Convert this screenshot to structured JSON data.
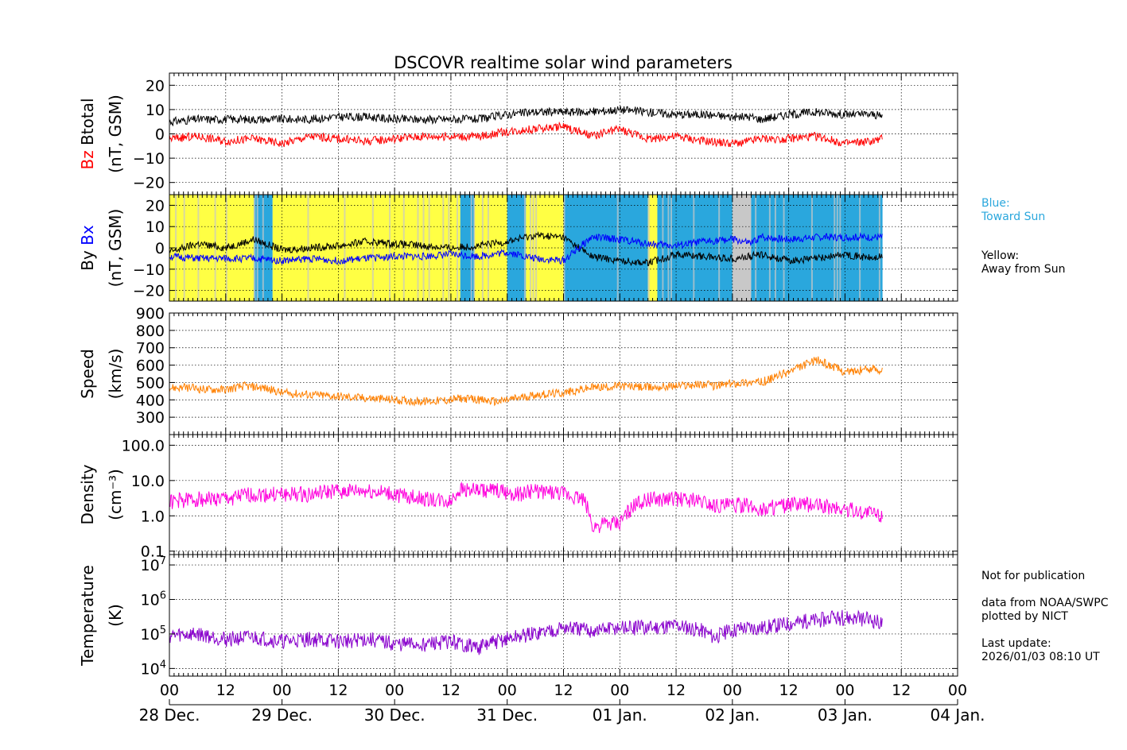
{
  "title": "DSCOVR realtime solar wind parameters",
  "colors": {
    "btotal": "#000000",
    "bz": "#ff0000",
    "by": "#000000",
    "bx": "#0000ff",
    "speed": "#ff8000",
    "density": "#ff00dd",
    "temperature": "#8800cc",
    "toward_sun": "#2aa7dd",
    "away_from_sun": "#ffff44",
    "mixed": "#c8c8c8",
    "grid": "#000000"
  },
  "legend": {
    "blue_title": "Blue:",
    "blue_text": "Toward Sun",
    "yellow_title": "Yellow:",
    "yellow_text": "Away from Sun"
  },
  "notes": {
    "not_for_publication": "Not for publication",
    "data_source": "data from NOAA/SWPC",
    "plotted_by": "plotted by NICT",
    "last_update_label": "Last update:",
    "last_update_value": "2026/01/03 08:10 UT"
  },
  "chart_data": {
    "type": "line",
    "x_axis": {
      "label": "",
      "range_hours": [
        0,
        168
      ],
      "data_end_hour": 152,
      "tick_hours": [
        0,
        12,
        24,
        36,
        48,
        60,
        72,
        84,
        96,
        108,
        120,
        132,
        144,
        156,
        168
      ],
      "tick_labels": [
        "00",
        "12",
        "00",
        "12",
        "00",
        "12",
        "00",
        "12",
        "00",
        "12",
        "00",
        "12",
        "00",
        "12",
        "00"
      ],
      "date_labels": [
        "28 Dec.",
        "29 Dec.",
        "30 Dec.",
        "31 Dec.",
        "01 Jan.",
        "02 Jan.",
        "03 Jan.",
        "04 Jan."
      ]
    },
    "panels": [
      {
        "id": "mag",
        "ylabel_line1": "Bz  Btotal",
        "ylabel_bz": "Bz",
        "ylabel_btotal": "Btotal",
        "ylabel_line2": "(nT, GSM)",
        "ylim": [
          -25,
          25
        ],
        "yticks": [
          -20,
          -10,
          0,
          10,
          20
        ],
        "ytick_labels": [
          "−20",
          "−10",
          "0",
          "10",
          "20"
        ],
        "series": [
          {
            "name": "Btotal",
            "color_key": "btotal",
            "x": [
              0,
              6,
              12,
              18,
              24,
              30,
              36,
              42,
              48,
              54,
              60,
              66,
              72,
              78,
              84,
              90,
              96,
              102,
              108,
              114,
              120,
              124,
              126,
              132,
              138,
              144,
              150,
              152
            ],
            "values": [
              5,
              6,
              6,
              6,
              6,
              6,
              7,
              7,
              6,
              6,
              6,
              6,
              8,
              9,
              9,
              9,
              10,
              9,
              8,
              8,
              7,
              7,
              6,
              8,
              9,
              8,
              8,
              7
            ]
          },
          {
            "name": "Bz",
            "color_key": "bz",
            "x": [
              0,
              6,
              12,
              18,
              24,
              30,
              36,
              42,
              48,
              54,
              60,
              66,
              72,
              78,
              84,
              90,
              96,
              102,
              108,
              114,
              120,
              124,
              126,
              132,
              138,
              144,
              150,
              152
            ],
            "values": [
              -2,
              -1,
              -3,
              -2,
              -4,
              -1,
              -2,
              -3,
              -2,
              -1,
              -1,
              -1,
              1,
              2,
              3,
              -1,
              2,
              -2,
              -1,
              -3,
              -4,
              -3,
              -2,
              -2,
              -1,
              -4,
              -3,
              -2
            ]
          }
        ]
      },
      {
        "id": "imf",
        "ylabel_line1": "By  Bx",
        "ylabel_by": "By",
        "ylabel_bx": "Bx",
        "ylabel_line2": "(nT, GSM)",
        "ylim": [
          -25,
          25
        ],
        "yticks": [
          -20,
          -10,
          0,
          10,
          20
        ],
        "ytick_labels": [
          "−20",
          "−10",
          "0",
          "10",
          "20"
        ],
        "sector_spans": [
          {
            "from": 0,
            "to": 18,
            "sector": "away"
          },
          {
            "from": 18,
            "to": 22,
            "sector": "toward"
          },
          {
            "from": 22,
            "to": 62,
            "sector": "away"
          },
          {
            "from": 62,
            "to": 65,
            "sector": "toward"
          },
          {
            "from": 65,
            "to": 72,
            "sector": "away"
          },
          {
            "from": 72,
            "to": 76,
            "sector": "toward"
          },
          {
            "from": 76,
            "to": 84,
            "sector": "away"
          },
          {
            "from": 84,
            "to": 102,
            "sector": "toward"
          },
          {
            "from": 102,
            "to": 104,
            "sector": "away"
          },
          {
            "from": 104,
            "to": 120,
            "sector": "toward"
          },
          {
            "from": 120,
            "to": 124,
            "sector": "mixed"
          },
          {
            "from": 124,
            "to": 152,
            "sector": "toward"
          }
        ],
        "series": [
          {
            "name": "By",
            "color_key": "by",
            "x": [
              0,
              6,
              12,
              18,
              24,
              30,
              36,
              42,
              48,
              54,
              60,
              66,
              72,
              78,
              84,
              90,
              96,
              102,
              108,
              114,
              120,
              124,
              126,
              132,
              138,
              144,
              150,
              152
            ],
            "values": [
              -2,
              2,
              0,
              4,
              -1,
              0,
              1,
              3,
              2,
              1,
              0,
              1,
              3,
              6,
              5,
              -4,
              -6,
              -7,
              -3,
              -4,
              -5,
              -4,
              -3,
              -6,
              -5,
              -3,
              -5,
              -4
            ]
          },
          {
            "name": "Bx",
            "color_key": "bx",
            "x": [
              0,
              6,
              12,
              18,
              24,
              30,
              36,
              42,
              48,
              54,
              60,
              66,
              72,
              78,
              84,
              90,
              96,
              102,
              108,
              114,
              120,
              124,
              126,
              132,
              138,
              144,
              150,
              152
            ],
            "values": [
              -4,
              -5,
              -5,
              -5,
              -6,
              -5,
              -6,
              -5,
              -4,
              -4,
              -3,
              -4,
              -2,
              -5,
              -6,
              5,
              4,
              2,
              1,
              3,
              4,
              2,
              5,
              4,
              5,
              5,
              5,
              5
            ]
          }
        ]
      },
      {
        "id": "speed",
        "ylabel_line1": "Speed",
        "ylabel_line2": "(km/s)",
        "ylim": [
          200,
          900
        ],
        "yticks": [
          300,
          400,
          500,
          600,
          700,
          800,
          900
        ],
        "ytick_labels": [
          "300",
          "400",
          "500",
          "600",
          "700",
          "800",
          "900"
        ],
        "series": [
          {
            "name": "Speed",
            "color_key": "speed",
            "x": [
              0,
              4,
              8,
              12,
              16,
              20,
              24,
              30,
              36,
              42,
              48,
              54,
              60,
              62,
              66,
              70,
              74,
              78,
              84,
              90,
              96,
              102,
              108,
              114,
              116,
              122,
              126,
              132,
              138,
              144,
              150,
              152
            ],
            "values": [
              470,
              470,
              460,
              460,
              480,
              470,
              440,
              430,
              420,
              410,
              400,
              390,
              400,
              410,
              400,
              390,
              410,
              430,
              440,
              470,
              480,
              470,
              480,
              490,
              480,
              500,
              500,
              560,
              630,
              560,
              580,
              570
            ]
          }
        ]
      },
      {
        "id": "density",
        "ylabel_line1": "Density",
        "ylabel_line2": "(cm⁻³)",
        "scale": "log",
        "ylim": [
          0.08,
          200
        ],
        "yticks": [
          0.1,
          1,
          10,
          100
        ],
        "ytick_labels": [
          "0.1",
          "1.0",
          "10.0",
          "100.0"
        ],
        "series": [
          {
            "name": "Density",
            "color_key": "density",
            "x": [
              0,
              6,
              12,
              18,
              24,
              30,
              36,
              42,
              48,
              54,
              60,
              62,
              66,
              70,
              74,
              78,
              84,
              88,
              90,
              96,
              102,
              108,
              114,
              116,
              122,
              126,
              132,
              138,
              144,
              150,
              152
            ],
            "values": [
              2.5,
              3,
              3,
              4,
              4,
              4,
              5,
              5,
              4,
              3,
              2.5,
              6,
              5,
              5,
              4,
              5,
              4,
              3,
              0.5,
              0.6,
              3,
              3,
              2.5,
              2,
              2,
              1.5,
              2,
              2,
              1.5,
              1.2,
              1
            ]
          }
        ]
      },
      {
        "id": "temperature",
        "ylabel_line1": "Temperature",
        "ylabel_line2": "(K)",
        "scale": "log",
        "ylim": [
          6000,
          20000000
        ],
        "yticks": [
          10000,
          100000,
          1000000,
          10000000
        ],
        "ytick_labels": [
          "10⁴",
          "10⁵",
          "10⁶",
          "10⁷"
        ],
        "tick_base": "10",
        "tick_exponents": [
          "4",
          "5",
          "6",
          "7"
        ],
        "series": [
          {
            "name": "Temperature",
            "color_key": "temperature",
            "x": [
              0,
              6,
              12,
              18,
              24,
              30,
              36,
              42,
              48,
              54,
              60,
              62,
              66,
              70,
              74,
              78,
              84,
              90,
              96,
              102,
              108,
              114,
              116,
              122,
              126,
              132,
              138,
              144,
              150,
              152
            ],
            "values": [
              90000,
              100000,
              70000,
              80000,
              60000,
              70000,
              60000,
              70000,
              50000,
              50000,
              60000,
              50000,
              40000,
              60000,
              80000,
              100000,
              150000,
              120000,
              150000,
              150000,
              180000,
              120000,
              80000,
              150000,
              150000,
              200000,
              250000,
              300000,
              250000,
              200000
            ]
          }
        ]
      }
    ]
  }
}
